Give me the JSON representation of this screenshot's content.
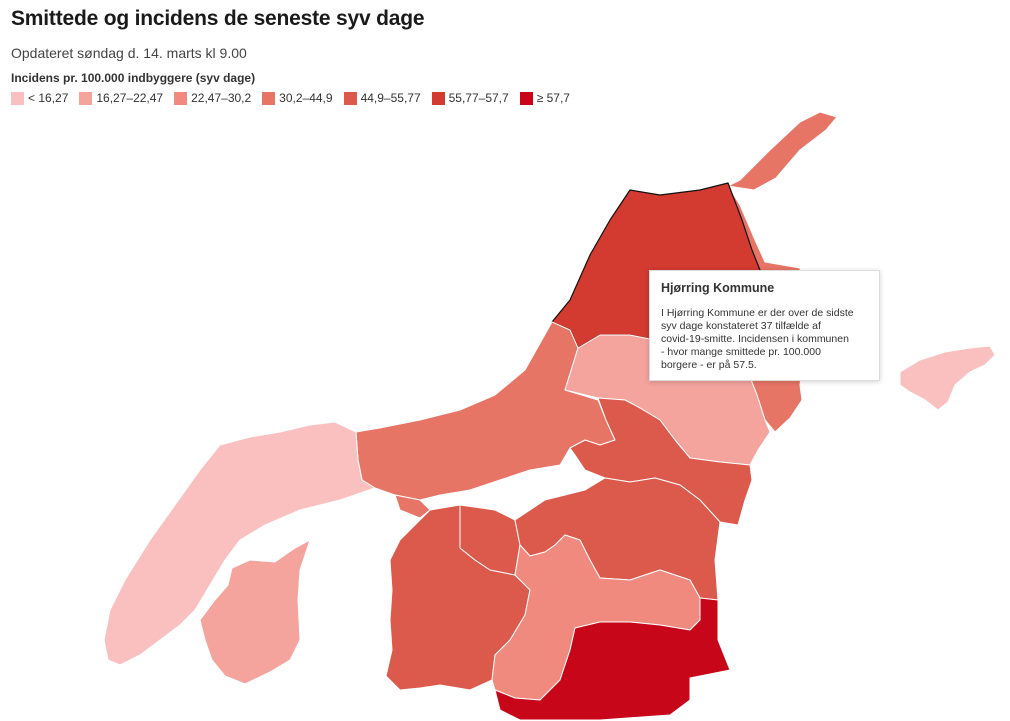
{
  "header": {
    "title": "Smittede og incidens de seneste syv dage",
    "subtitle": "Opdateret søndag d. 14. marts kl 9.00"
  },
  "legend": {
    "title": "Incidens pr. 100.000 indbyggere (syv dage)",
    "items": [
      {
        "label": "< 16,27",
        "color": "#f9c0bf"
      },
      {
        "label": "16,27–22,47",
        "color": "#f4a39d"
      },
      {
        "label": "22,47–30,2",
        "color": "#f0897e"
      },
      {
        "label": "30,2–44,9",
        "color": "#e77566"
      },
      {
        "label": "44,9–55,77",
        "color": "#dc5a4c"
      },
      {
        "label": "55,77–57,7",
        "color": "#d33a30"
      },
      {
        "label": "≥ 57,7",
        "color": "#c8061a"
      }
    ]
  },
  "tooltip": {
    "title": "Hjørring Kommune",
    "body_lines": [
      "I Hjørring Kommune er der over de sidste",
      "syv dage konstateret 37 tilfælde af",
      "covid-19-smitte. Incidensen i kommunen",
      "- hvor mange smittede pr. 100.000",
      "borgere - er på 57.5."
    ]
  },
  "map": {
    "selected_region": "Hjørring Kommune",
    "regions": [
      {
        "id": "frederikshavn",
        "color": "#e77566"
      },
      {
        "id": "hjorring",
        "color": "#d33a30"
      },
      {
        "id": "jammerbugt",
        "color": "#e77566"
      },
      {
        "id": "broenderslev",
        "color": "#f4a39d"
      },
      {
        "id": "aalborg-north",
        "color": "#dc5a4c"
      },
      {
        "id": "aalborg-coast",
        "color": "#e77566"
      },
      {
        "id": "thisted",
        "color": "#f9c0bf"
      },
      {
        "id": "morsoe",
        "color": "#f4a39d"
      },
      {
        "id": "vesthimmerland",
        "color": "#dc5a4c"
      },
      {
        "id": "lille-vest",
        "color": "#dc5a4c"
      },
      {
        "id": "aalborg-south",
        "color": "#dc5a4c"
      },
      {
        "id": "rebild",
        "color": "#f0897e"
      },
      {
        "id": "mariagerfjord",
        "color": "#c8061a"
      },
      {
        "id": "laesoe",
        "color": "#f9c0bf"
      }
    ]
  }
}
